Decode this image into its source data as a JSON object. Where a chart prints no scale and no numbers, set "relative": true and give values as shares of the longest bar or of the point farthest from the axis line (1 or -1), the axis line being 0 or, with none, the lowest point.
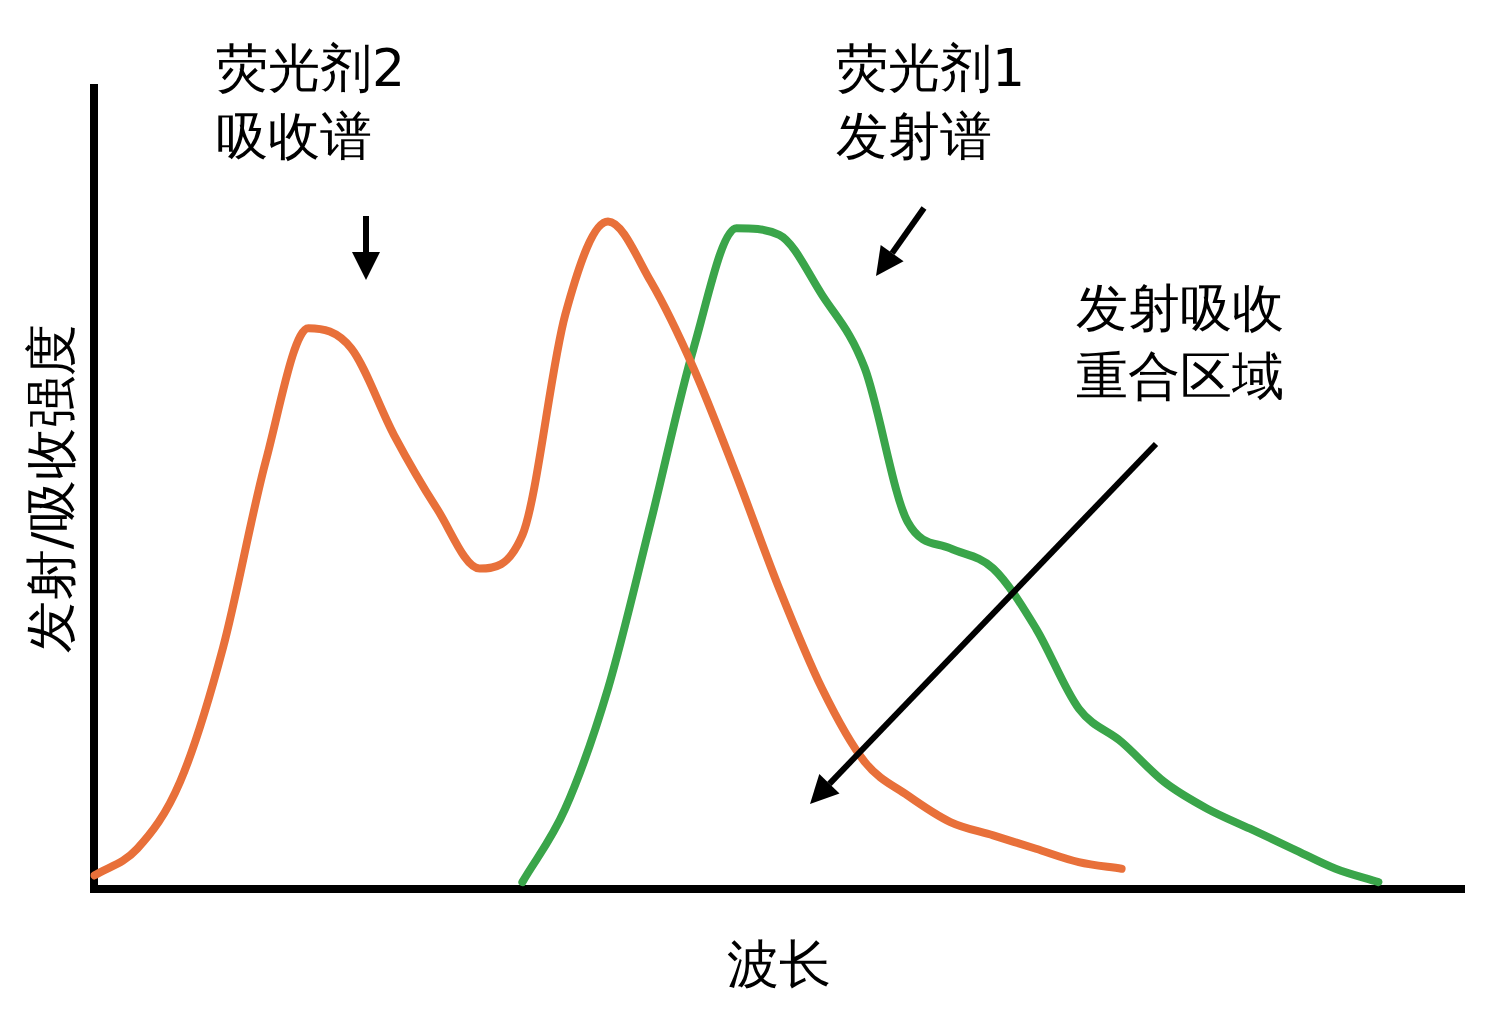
{
  "chart_data": {
    "type": "line",
    "relative": true,
    "xlabel": "波长",
    "ylabel": "发射/吸收强度",
    "categories": [
      null,
      null,
      null,
      null,
      null,
      null,
      null,
      null,
      null,
      null,
      null,
      null,
      null,
      null,
      null,
      null,
      null,
      null,
      null,
      null,
      null,
      null,
      null,
      null,
      null,
      null,
      null,
      null,
      null,
      null,
      null,
      null,
      null
    ],
    "series": [
      {
        "name": "荧光剂2吸收谱",
        "color": "#e8703a",
        "values": [
          0.02,
          0.06,
          0.16,
          0.36,
          0.64,
          0.84,
          0.81,
          0.68,
          0.57,
          0.48,
          0.53,
          0.86,
          1,
          0.91,
          0.78,
          0.62,
          0.45,
          0.3,
          0.19,
          0.14,
          0.1,
          0.08,
          0.06,
          0.04,
          0.03,
          null,
          null,
          null,
          null,
          null,
          null,
          null,
          null
        ]
      },
      {
        "name": "荧光剂1发射谱",
        "color": "#3aa54a",
        "values": [
          null,
          null,
          null,
          null,
          null,
          null,
          null,
          null,
          null,
          null,
          0.01,
          0.12,
          0.3,
          0.55,
          0.81,
          0.99,
          0.98,
          0.89,
          0.78,
          0.55,
          0.51,
          0.48,
          0.39,
          0.27,
          0.22,
          0.16,
          0.12,
          0.09,
          0.06,
          0.03,
          0.01,
          null,
          null
        ]
      }
    ],
    "annotations": [
      "发射吸收重合区域"
    ],
    "legend": false,
    "marker": "none",
    "line_style": "solid"
  }
}
